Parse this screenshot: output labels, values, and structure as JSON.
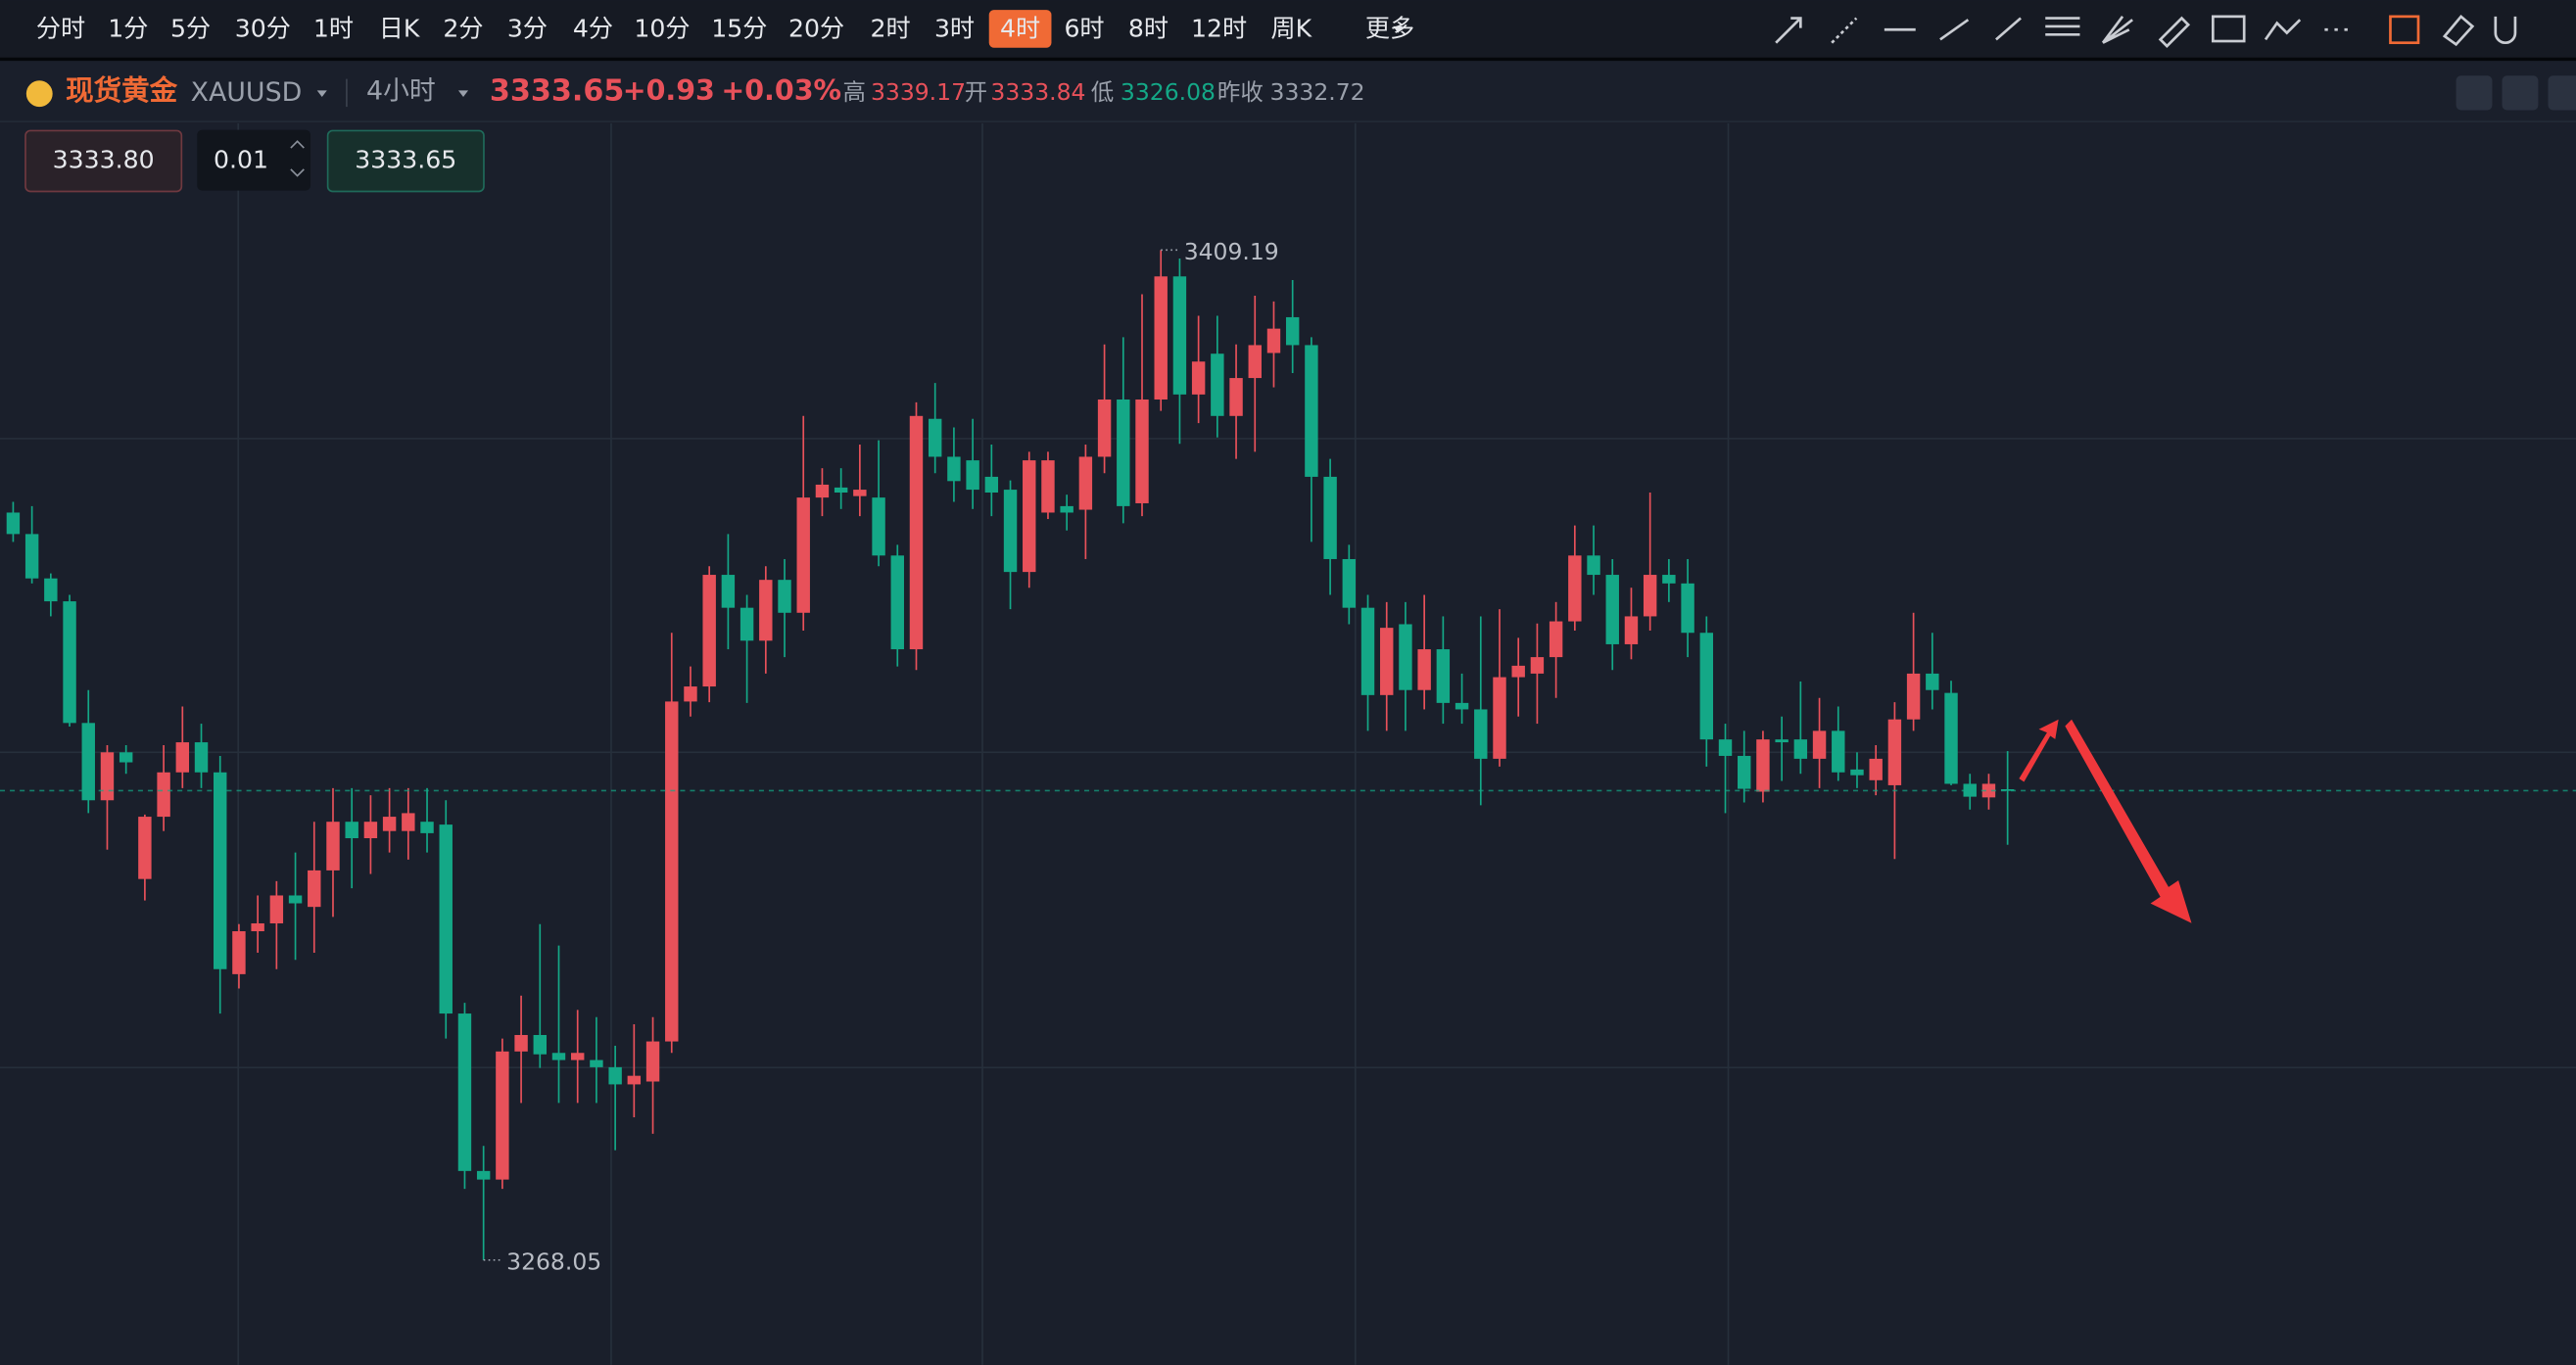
{
  "toolbar": {
    "intervals": [
      "分时",
      "1分",
      "5分",
      "30分",
      "1时",
      "日K",
      "2分",
      "3分",
      "4分",
      "10分",
      "15分",
      "20分",
      "2时",
      "3时",
      "4时",
      "6时",
      "8时",
      "12时",
      "周K",
      "更多"
    ],
    "active_index": 14
  },
  "symbol": {
    "name": "现货黄金",
    "code": "XAUUSD",
    "period": "4小时",
    "price": 3333.65,
    "change": {
      "value": 0.93,
      "label": "+0.93"
    },
    "change_pct": {
      "value": 0.03,
      "label": "+0.03%"
    },
    "high_label": "高",
    "high": 3339.17,
    "open_label": "开",
    "open": 3333.84,
    "low_label": "低",
    "low": 3326.08,
    "prev_close_label": "昨收",
    "prev_close": 3332.72
  },
  "order": {
    "sell": {
      "value": 3333.8,
      "label": "3333.80"
    },
    "qty": 0.01,
    "buy": 3333.65
  },
  "chart_data": {
    "type": "candlestick",
    "ylim": [
      3253.4,
      3426.9
    ],
    "up_color": "#e8515a",
    "down_color": "#14a887",
    "annotations": [
      3409.19,
      3268.05
    ],
    "open": [
      3372.5,
      3369.5,
      3363.3,
      3360.1,
      3343.1,
      3332.3,
      3339,
      3321.3,
      3330,
      3336.2,
      3340.4,
      3336.2,
      3308,
      3314,
      3315.1,
      3319,
      3317.4,
      3322.5,
      3329.3,
      3327,
      3328,
      3328,
      3329.3,
      3328.9,
      3302.5,
      3280.5,
      3279.3,
      3297.2,
      3299.5,
      3297,
      3296,
      3296,
      3295,
      3292.6,
      3293,
      3298.6,
      3346.1,
      3348.2,
      3363.8,
      3359.2,
      3354.6,
      3363.1,
      3358.5,
      3374.6,
      3376,
      3374.8,
      3374.6,
      3366.5,
      3353.4,
      3385.6,
      3380.3,
      3379.8,
      3377.5,
      3375.7,
      3364.2,
      3372.5,
      3373.4,
      3372.9,
      3380.3,
      3388.3,
      3373.8,
      3388.3,
      3405.5,
      3389,
      3394.7,
      3386,
      3391.3,
      3394.8,
      3399.8,
      3395.9,
      3377.5,
      3366,
      3359.2,
      3347,
      3356.9,
      3347.7,
      3353.4,
      3345.9,
      3345,
      3338.1,
      3349.5,
      3350,
      3352.3,
      3357.3,
      3366.5,
      3363.8,
      3354.1,
      3358,
      3363.8,
      3362.6,
      3355.7,
      3340.8,
      3338.5,
      3333.5,
      3340.8,
      3340.8,
      3338.1,
      3342,
      3336.6,
      3335.1,
      3334.4,
      3343.6,
      3350,
      3347.3,
      3334.6,
      3332.7,
      3333.84
    ],
    "high": [
      3374,
      3373.4,
      3364,
      3361,
      3347.7,
      3340,
      3340,
      3330.3,
      3340,
      3345.4,
      3343,
      3338.5,
      3315,
      3319,
      3321,
      3325,
      3329.3,
      3334,
      3334,
      3333,
      3334,
      3334,
      3334,
      3332.3,
      3304,
      3284,
      3299,
      3305,
      3315,
      3312,
      3303,
      3302,
      3298,
      3301,
      3302,
      3355.7,
      3351,
      3365,
      3369.5,
      3361,
      3365,
      3366,
      3386,
      3378.7,
      3378.7,
      3382,
      3382.6,
      3368,
      3387.9,
      3390.6,
      3384.4,
      3385.6,
      3382,
      3377,
      3381,
      3381,
      3375,
      3382,
      3396,
      3397,
      3403,
      3409.19,
      3408,
      3400,
      3400,
      3396,
      3402.8,
      3402,
      3405,
      3397,
      3380,
      3368,
      3361,
      3360,
      3360,
      3361,
      3358,
      3350,
      3358,
      3359,
      3355,
      3357,
      3360,
      3370.7,
      3370.7,
      3366,
      3362,
      3375.3,
      3366,
      3366,
      3358,
      3343,
      3342,
      3342,
      3344,
      3348.9,
      3346.6,
      3345.4,
      3339,
      3340,
      3346,
      3358.5,
      3355.7,
      3349,
      3336,
      3336,
      3339.17
    ],
    "low": [
      3368.4,
      3362.6,
      3358,
      3342.6,
      3330.5,
      3325.4,
      3336,
      3318.3,
      3328,
      3334,
      3334,
      3302.5,
      3306,
      3311,
      3308.7,
      3310,
      3311,
      3316,
      3320,
      3322,
      3325,
      3324,
      3325,
      3299,
      3278,
      3268.05,
      3278,
      3290,
      3294.9,
      3290,
      3290,
      3290,
      3283.4,
      3288,
      3285.7,
      3297,
      3344,
      3346,
      3353.4,
      3345.9,
      3350,
      3352.3,
      3356,
      3372,
      3373,
      3372,
      3365,
      3351,
      3350.5,
      3378,
      3374,
      3373,
      3372,
      3359,
      3362,
      3371.6,
      3370,
      3366,
      3378,
      3371,
      3372,
      3386.7,
      3382.1,
      3385,
      3383,
      3380,
      3381,
      3390,
      3392,
      3368.4,
      3361,
      3356.9,
      3342,
      3342,
      3342,
      3345,
      3343,
      3343,
      3331.6,
      3337,
      3344,
      3343,
      3346.6,
      3356,
      3361,
      3350.5,
      3352,
      3356,
      3360,
      3352.3,
      3337,
      3330.5,
      3332,
      3332,
      3335,
      3336,
      3334,
      3335,
      3334,
      3333,
      3324.1,
      3342,
      3345,
      3334.4,
      3331,
      3331,
      3326.08
    ],
    "close": [
      3369.5,
      3363.3,
      3360.1,
      3343.1,
      3332.3,
      3339,
      3337.6,
      3330,
      3336.2,
      3340.4,
      3336.2,
      3308.7,
      3314,
      3315.1,
      3319,
      3317.9,
      3322.5,
      3329.3,
      3327,
      3329.3,
      3330,
      3330.5,
      3327.7,
      3302.5,
      3280.5,
      3279.3,
      3297.2,
      3299.5,
      3296.8,
      3296,
      3297,
      3295,
      3292.6,
      3293.8,
      3298.6,
      3346.1,
      3348.2,
      3363.8,
      3359.2,
      3354.6,
      3363.1,
      3358.5,
      3374.6,
      3376.4,
      3375.3,
      3375.7,
      3366.5,
      3353.4,
      3386,
      3380.3,
      3376.9,
      3375.7,
      3375.3,
      3364.2,
      3379.8,
      3379.8,
      3372.5,
      3380.3,
      3388.3,
      3373.4,
      3388.3,
      3405.5,
      3389,
      3393.6,
      3386,
      3391.3,
      3395.9,
      3398.2,
      3395.9,
      3377.5,
      3366,
      3359.2,
      3347,
      3356.4,
      3347.7,
      3353.4,
      3345.9,
      3345,
      3338.1,
      3349.5,
      3351.1,
      3352.3,
      3357.3,
      3366.5,
      3363.8,
      3354.1,
      3358,
      3363.8,
      3362.6,
      3355.7,
      3340.8,
      3338.5,
      3333.9,
      3340.8,
      3340.4,
      3338.1,
      3342,
      3336.2,
      3335.8,
      3338.1,
      3343.6,
      3350,
      3347.7,
      3334.6,
      3332.8,
      3334.6,
      3333.65
    ]
  }
}
